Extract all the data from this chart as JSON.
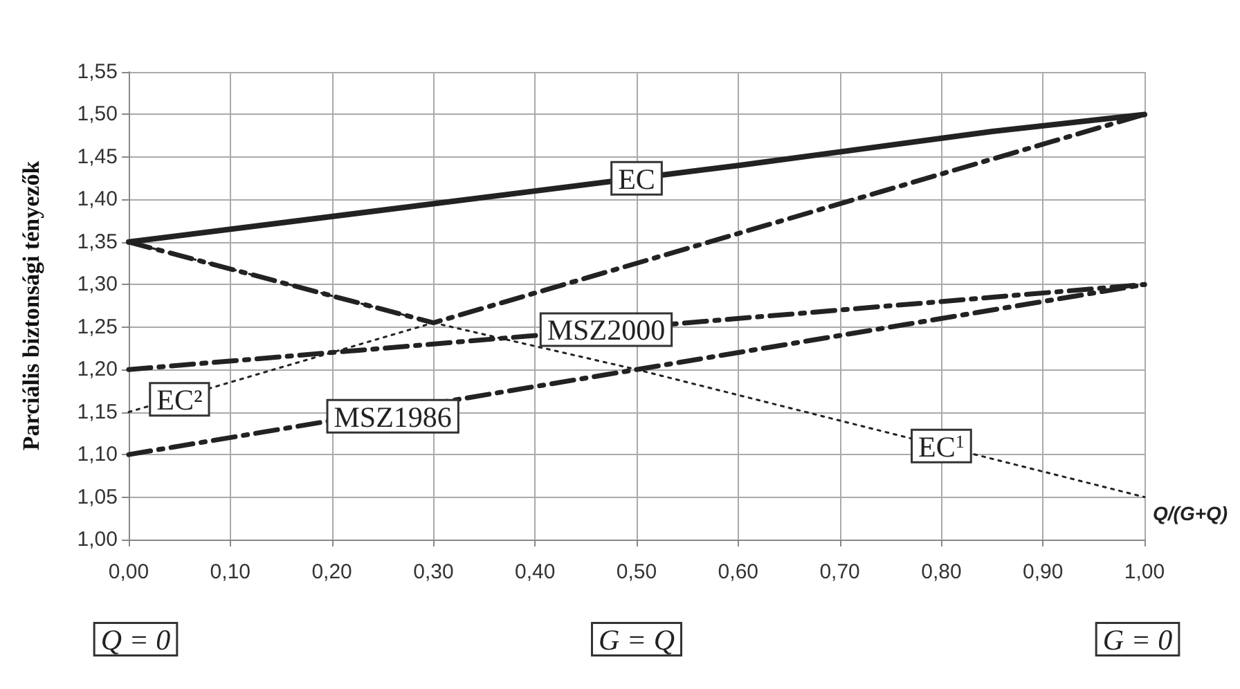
{
  "chart_data": {
    "type": "line",
    "ylabel": "Parciális biztonsági tényezők",
    "xlabel": "Q/(G+Q)",
    "xlim": [
      0,
      1
    ],
    "xticks": [
      {
        "value": 0,
        "label": "0,00"
      },
      {
        "value": 0.1,
        "label": "0,10"
      },
      {
        "value": 0.2,
        "label": "0,20"
      },
      {
        "value": 0.3,
        "label": "0,30"
      },
      {
        "value": 0.4,
        "label": "0,40"
      },
      {
        "value": 0.5,
        "label": "0,50"
      },
      {
        "value": 0.6,
        "label": "0,60"
      },
      {
        "value": 0.7,
        "label": "0,70"
      },
      {
        "value": 0.8,
        "label": "0,80"
      },
      {
        "value": 0.9,
        "label": "0,90"
      },
      {
        "value": 1,
        "label": "1,00"
      }
    ],
    "ylim": [
      1,
      1.55
    ],
    "yticks": [
      {
        "value": 1,
        "label": "1,00"
      },
      {
        "value": 1.05,
        "label": "1,05"
      },
      {
        "value": 1.1,
        "label": "1,10"
      },
      {
        "value": 1.15,
        "label": "1,15"
      },
      {
        "value": 1.2,
        "label": "1,20"
      },
      {
        "value": 1.25,
        "label": "1,25"
      },
      {
        "value": 1.3,
        "label": "1,30"
      },
      {
        "value": 1.35,
        "label": "1,35"
      },
      {
        "value": 1.4,
        "label": "1,40"
      },
      {
        "value": 1.45,
        "label": "1,45"
      },
      {
        "value": 1.5,
        "label": "1,50"
      },
      {
        "value": 1.55,
        "label": "1,55"
      }
    ],
    "grid": true,
    "marker": "none",
    "series": [
      {
        "color": "#222222",
        "line_style": "solid",
        "x": [
          0,
          0.3,
          0.6,
          0.85,
          1
        ],
        "values": [
          1.35,
          1.395,
          1.44,
          1.48,
          1.5
        ]
      },
      {
        "color": "#222222",
        "line_style": "dashed",
        "x": [
          0,
          0.3,
          1
        ],
        "values": [
          1.35,
          1.255,
          1.5
        ]
      },
      {
        "color": "#222222",
        "line_style": "dotted",
        "x": [
          0,
          0.3,
          0.5,
          1
        ],
        "values": [
          1.35,
          1.255,
          1.2,
          1.05
        ]
      },
      {
        "color": "#222222",
        "line_style": "dotted",
        "x": [
          0,
          0.3
        ],
        "values": [
          1.15,
          1.255
        ]
      },
      {
        "color": "#222222",
        "line_style": "dashed",
        "x": [
          0,
          1
        ],
        "values": [
          1.2,
          1.3
        ]
      },
      {
        "color": "#222222",
        "line_style": "dashed",
        "x": [
          0,
          1
        ],
        "values": [
          1.1,
          1.3
        ]
      }
    ],
    "annotations": [
      {
        "text": "EC",
        "x": 0.5,
        "y": 1.425
      },
      {
        "text": "MSZ2000",
        "x": 0.47,
        "y": 1.247
      },
      {
        "text": "EC²",
        "x": 0.05,
        "y": 1.165
      },
      {
        "text": "MSZ1986",
        "x": 0.26,
        "y": 1.145
      },
      {
        "text": "EC$^{1}$",
        "x": 0.8,
        "y": 1.11
      },
      "Q = 0",
      "G = Q",
      "G = 0"
    ]
  }
}
